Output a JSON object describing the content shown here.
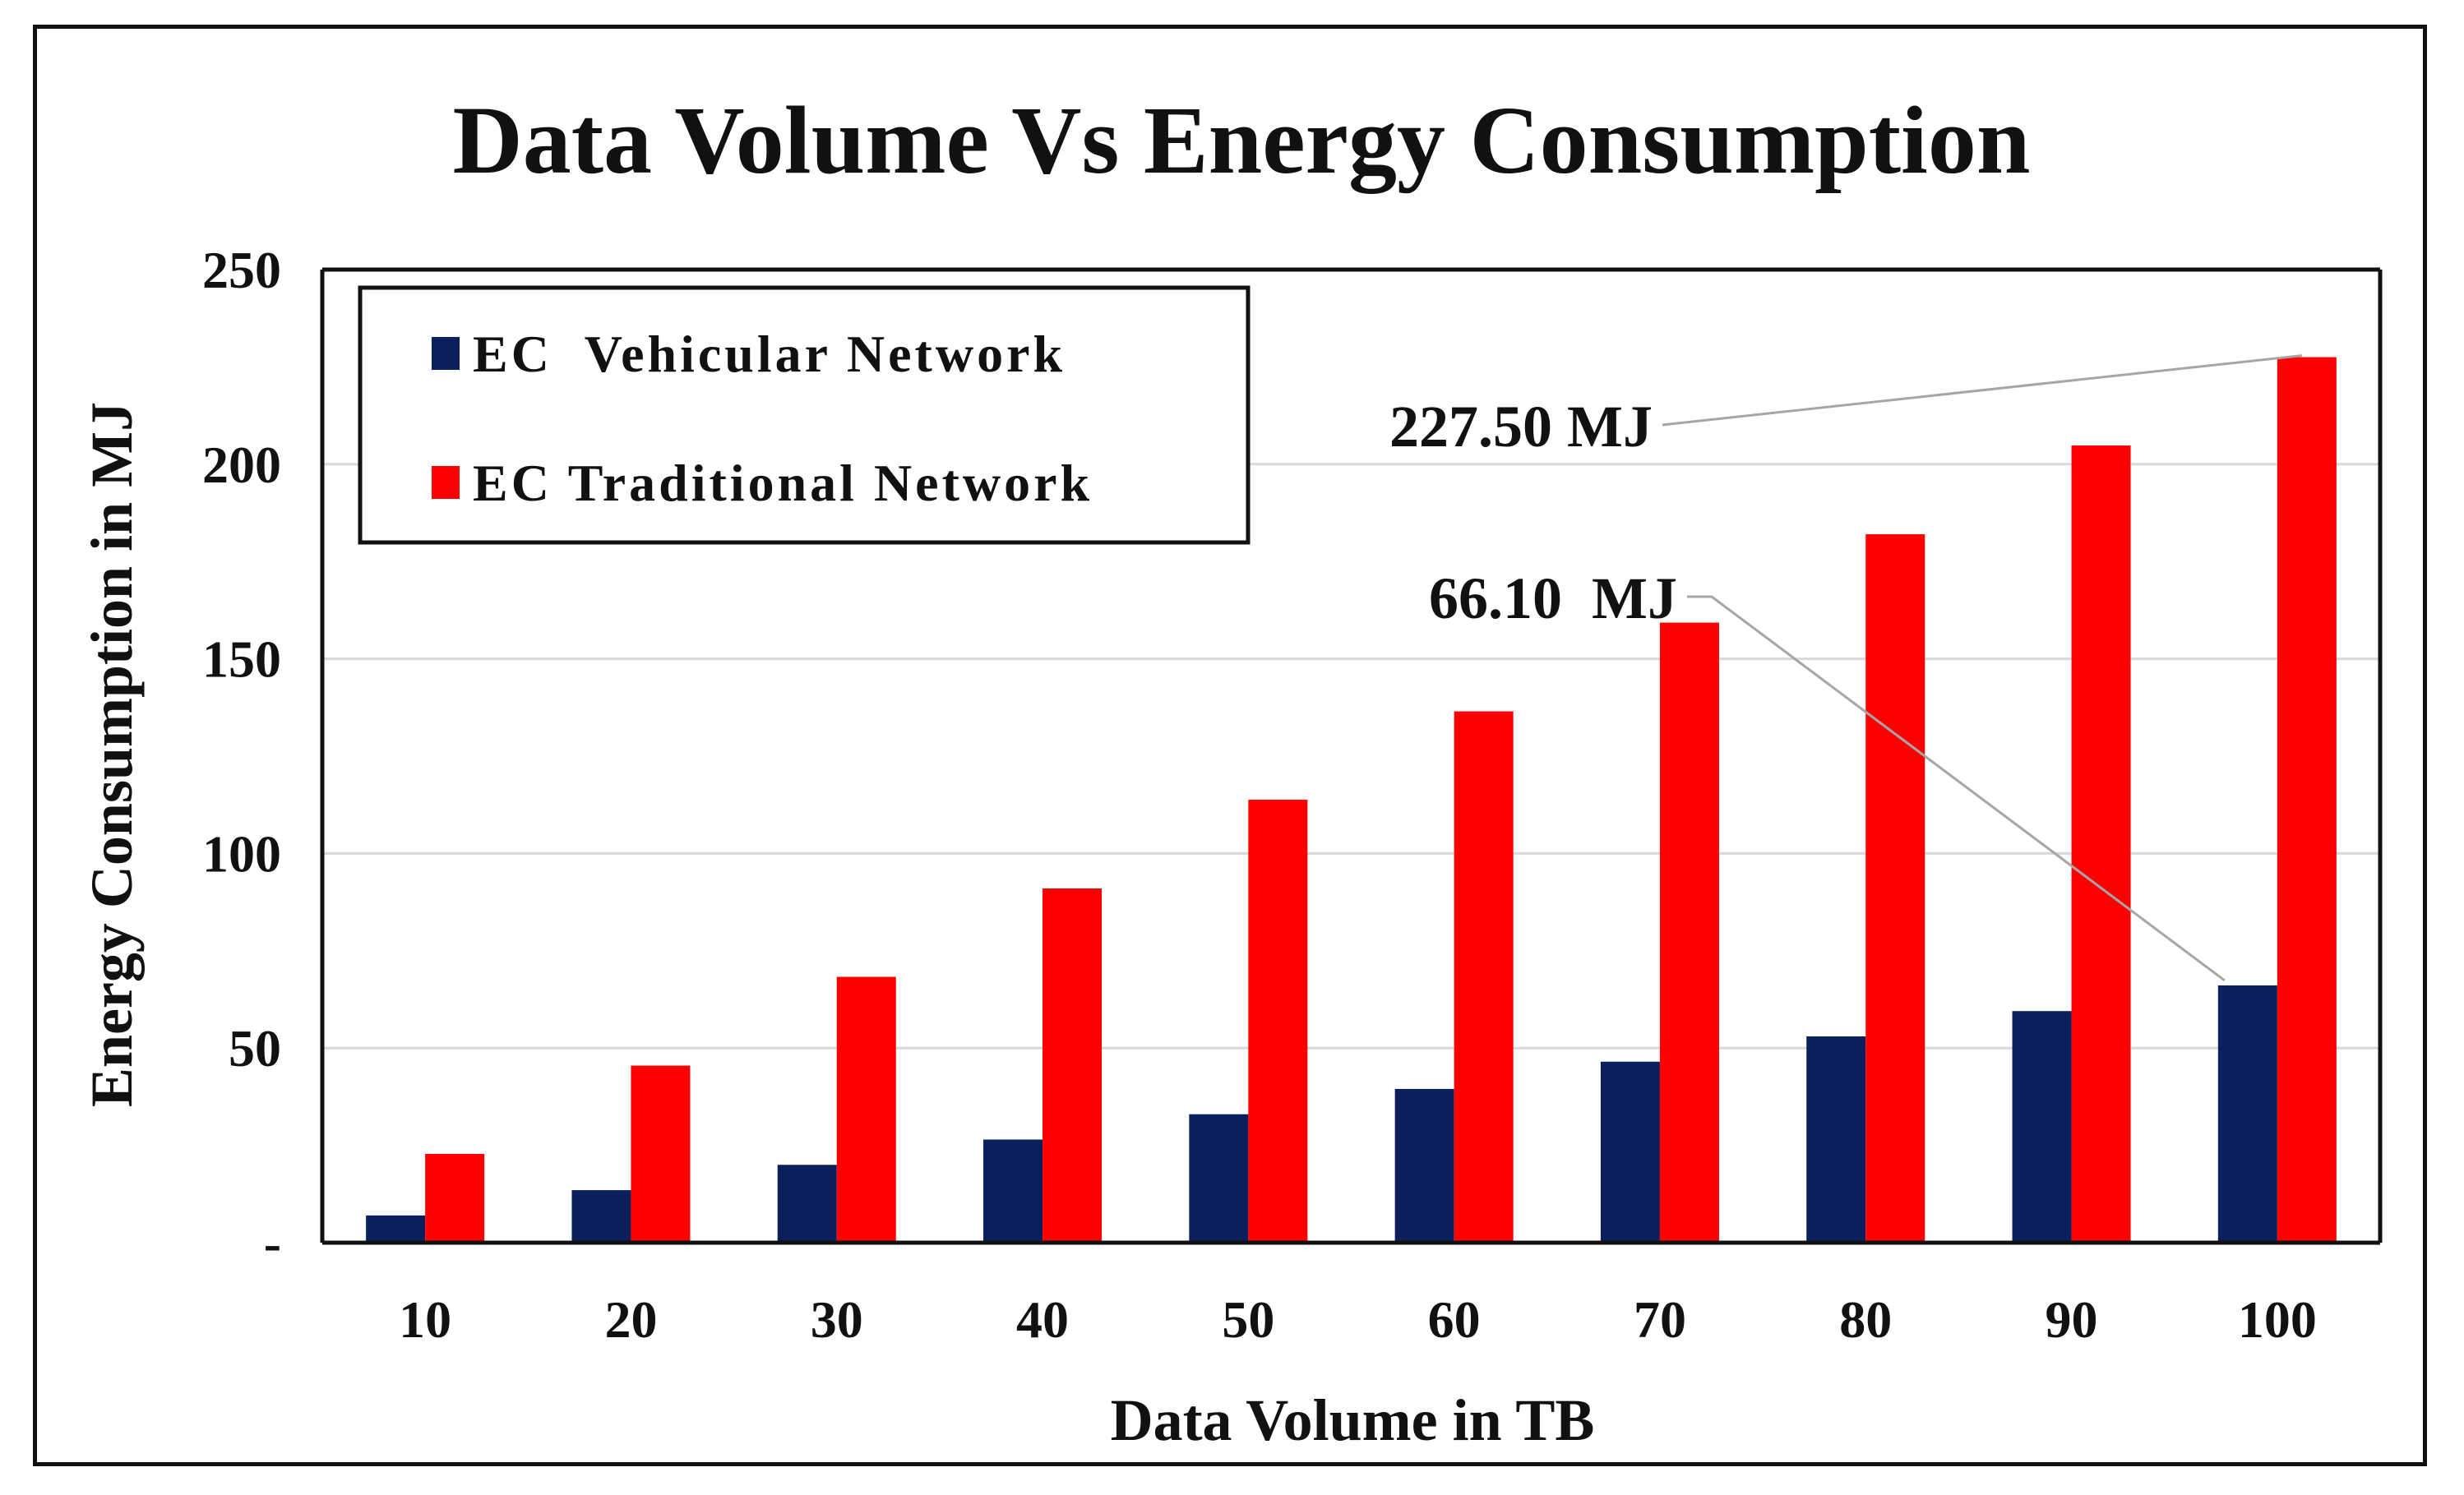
{
  "chart_data": {
    "type": "bar",
    "title": "Data Volume Vs Energy Consumption",
    "xlabel": "Data Volume in TB",
    "ylabel": "Energy Consumption in MJ",
    "categories": [
      "10",
      "20",
      "30",
      "40",
      "50",
      "60",
      "70",
      "80",
      "90",
      "100"
    ],
    "ylim": [
      0,
      250
    ],
    "yticks": [
      0,
      50,
      100,
      150,
      200,
      250
    ],
    "ytick_labels": [
      "-",
      "50",
      "100",
      "150",
      "200",
      "250"
    ],
    "grid": true,
    "legend_position": "top-left",
    "series": [
      {
        "name": "EC  Vehicular Network",
        "color": "#0b1f5c",
        "values": [
          7,
          13.5,
          20,
          26.5,
          33,
          39.5,
          46.5,
          53,
          59.5,
          66.1
        ]
      },
      {
        "name": "EC Traditional Network",
        "color": "#ff0000",
        "values": [
          22.8,
          45.5,
          68.3,
          91,
          113.8,
          136.5,
          159.3,
          182,
          204.8,
          227.5
        ]
      }
    ],
    "annotations": [
      {
        "text": "227.50 MJ",
        "series": 1,
        "category": "100"
      },
      {
        "text": "66.10  MJ",
        "series": 0,
        "category": "100"
      }
    ]
  },
  "colors": {
    "grid": "#d9d9d9",
    "axis": "#111111",
    "leader": "#a6a6a6"
  }
}
